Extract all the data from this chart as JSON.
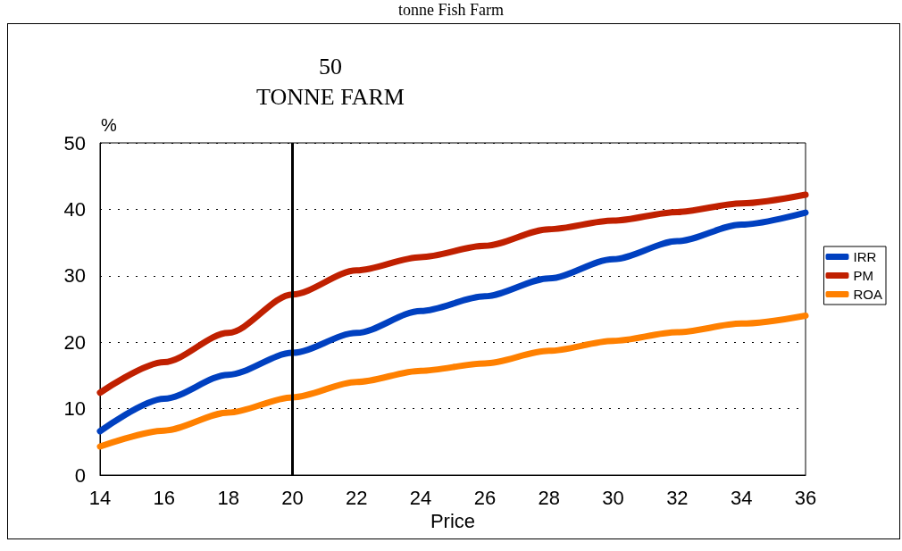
{
  "chart_data": {
    "type": "line",
    "title": "50\nTONNE FARM",
    "xlabel": "Price",
    "ylabel": "%",
    "annotations": [
      "tonne Fish Farm"
    ],
    "x": [
      14,
      16,
      18,
      20,
      22,
      24,
      26,
      28,
      30,
      32,
      34,
      36
    ],
    "series": [
      {
        "name": "IRR",
        "color": "#0040c0",
        "values": [
          6.6,
          11.5,
          15.1,
          18.4,
          21.4,
          24.7,
          26.9,
          29.6,
          32.5,
          35.2,
          37.7,
          39.5
        ]
      },
      {
        "name": "PM",
        "color": "#c02000",
        "values": [
          12.4,
          17.0,
          21.4,
          27.2,
          30.8,
          32.8,
          34.5,
          37.0,
          38.3,
          39.6,
          40.9,
          42.2
        ]
      },
      {
        "name": "ROA",
        "color": "#ff8000",
        "values": [
          4.3,
          6.7,
          9.4,
          11.7,
          14.0,
          15.7,
          16.8,
          18.7,
          20.2,
          21.5,
          22.8,
          24.0
        ]
      }
    ],
    "xlim": [
      14,
      36
    ],
    "xticks": [
      14,
      16,
      18,
      20,
      22,
      24,
      26,
      28,
      30,
      32,
      34,
      36
    ],
    "ylim": [
      0,
      50
    ],
    "yticks": [
      0,
      10,
      20,
      30,
      40,
      50
    ],
    "ref_lines": [
      {
        "axis": "x",
        "value": 20,
        "color": "#000000"
      }
    ],
    "grid": "y",
    "legend": "right",
    "marker": "none",
    "line_style": "solid"
  }
}
